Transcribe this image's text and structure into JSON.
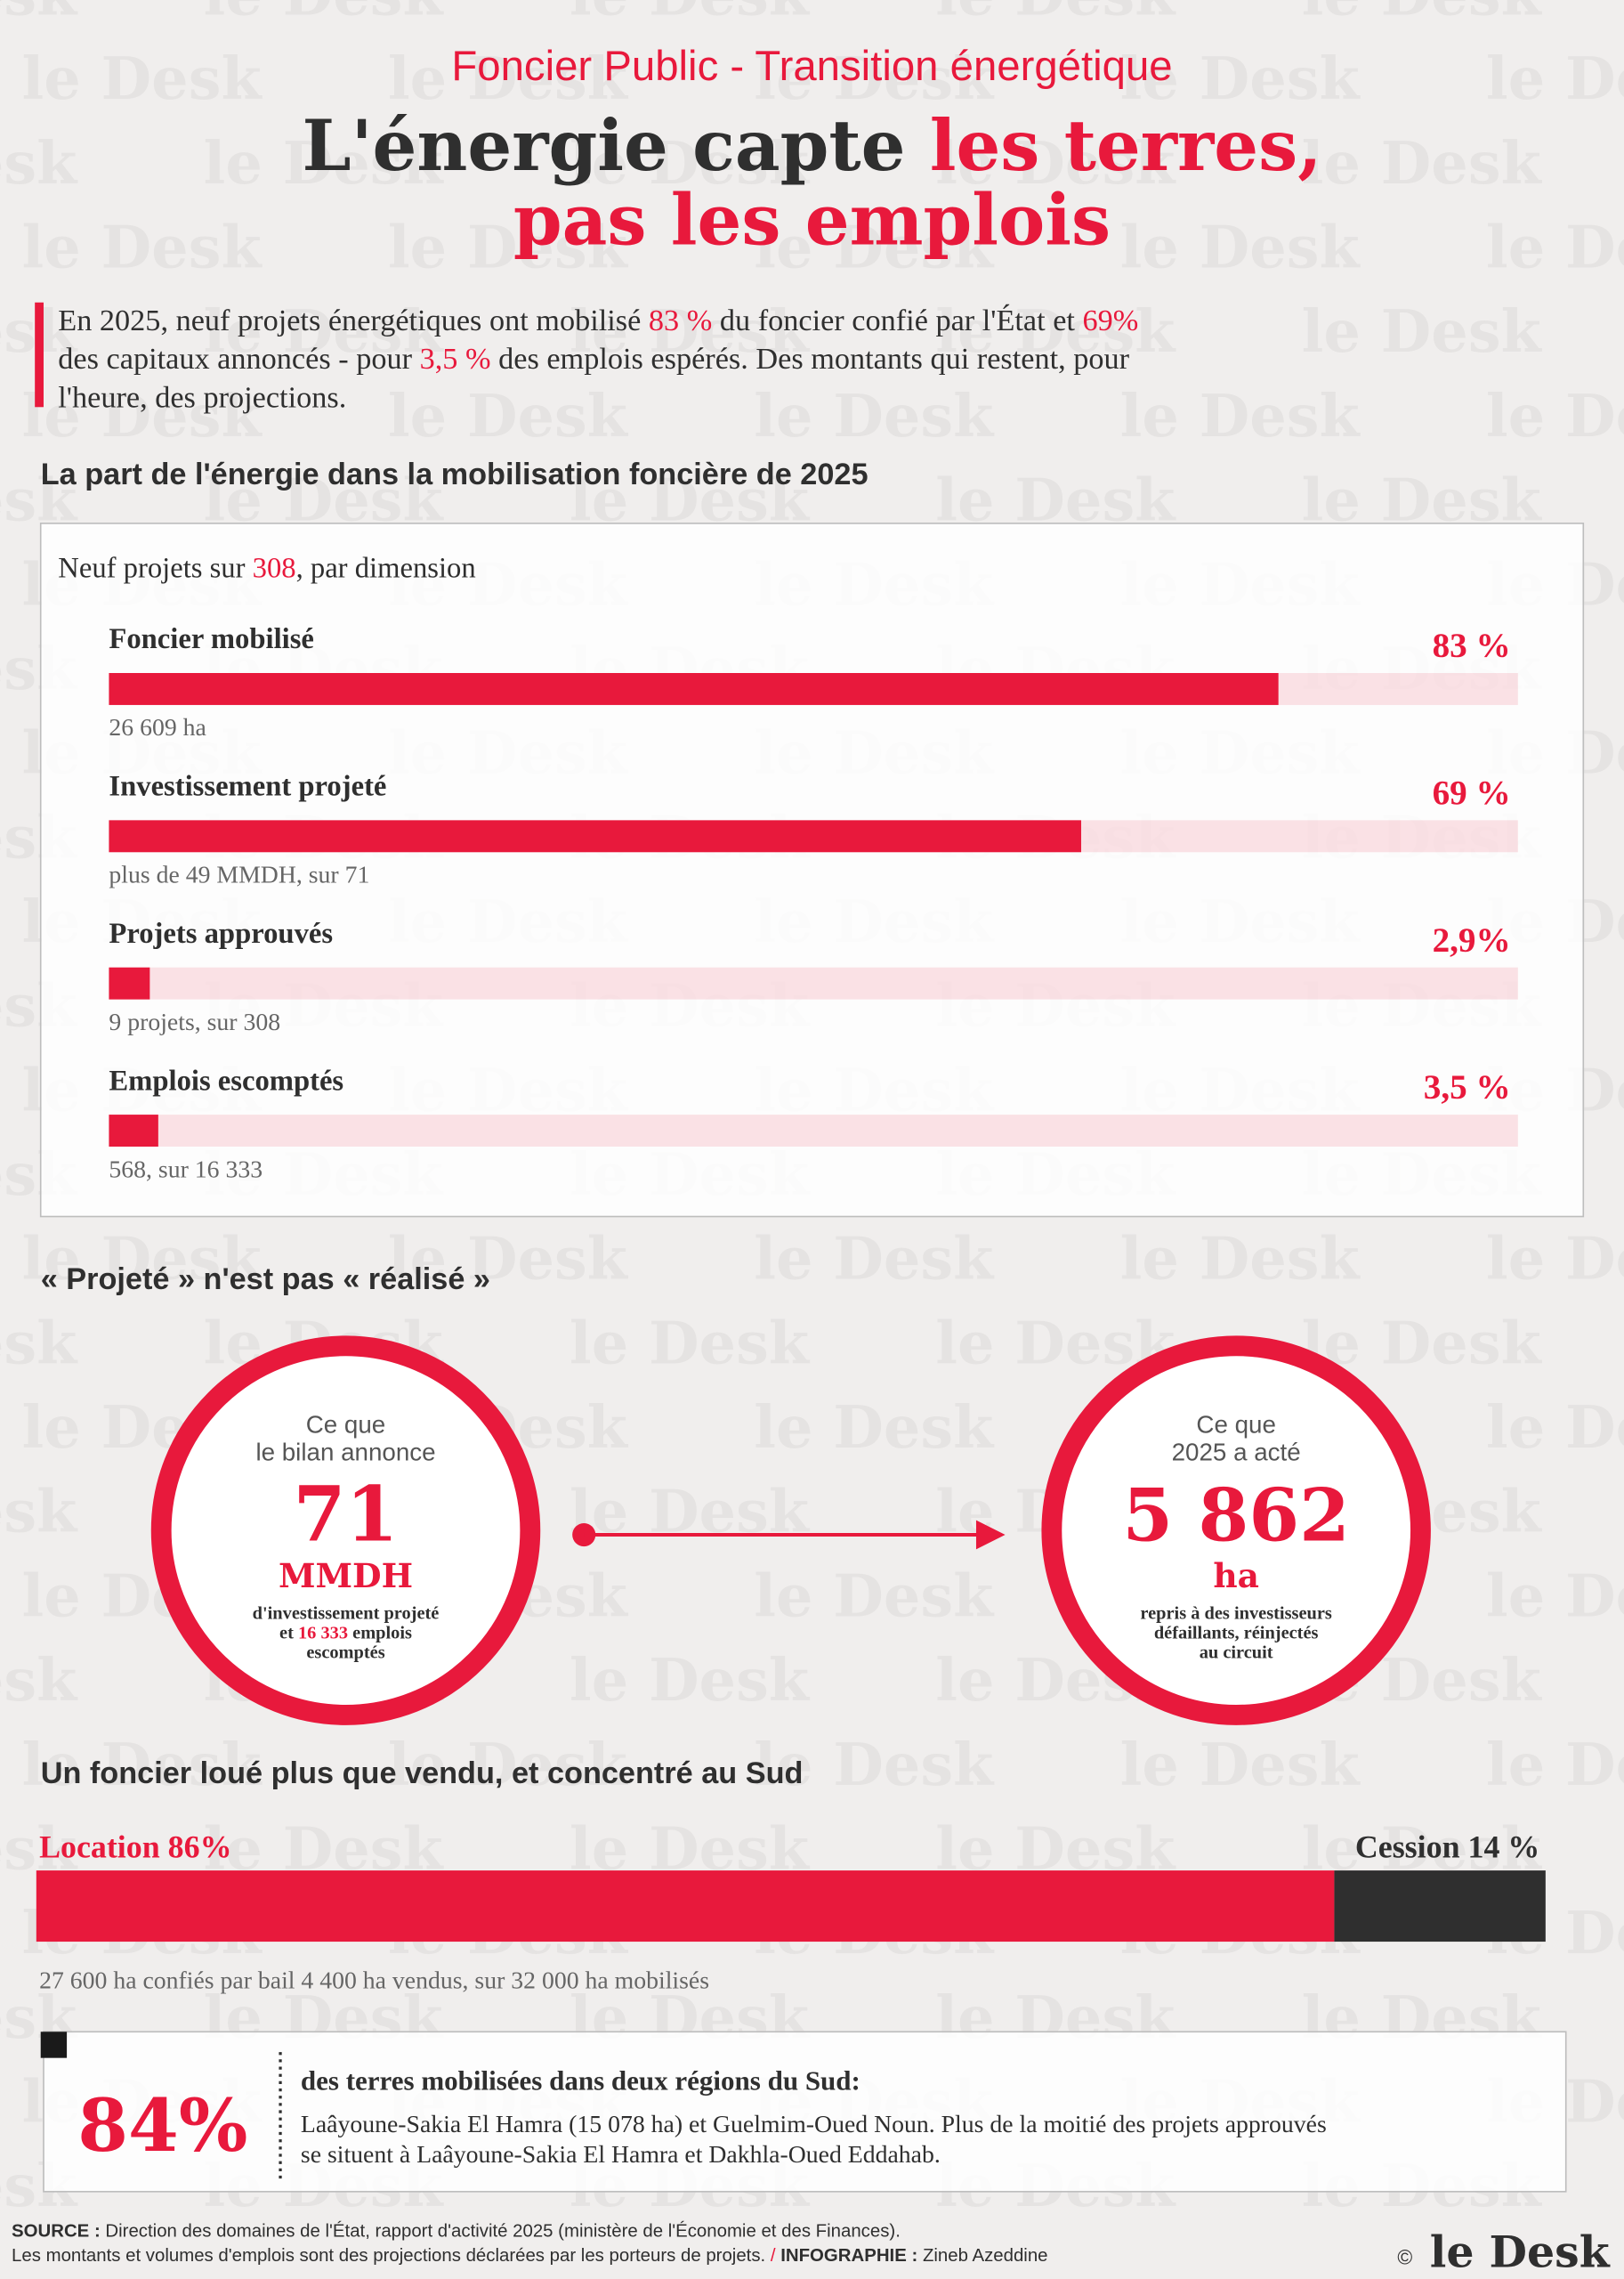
{
  "watermark": "le Desk",
  "header": {
    "kicker": "Foncier Public - Transition énergétique",
    "title_dark": "L'énergie capte ",
    "title_red_1": "les terres,",
    "title_red_2": "pas les emplois"
  },
  "intro": [
    [
      {
        "text": "En 2025, neuf projets énergétiques ont mobilisé "
      },
      {
        "text": "83 %",
        "em": true
      },
      {
        "text": " du foncier confié par l'État et "
      },
      {
        "text": "69%",
        "em": true
      }
    ],
    [
      {
        "text": "des capitaux annoncés - pour "
      },
      {
        "text": "3,5 %",
        "em": true
      },
      {
        "text": " des emplois espérés. Des montants qui restent, pour"
      }
    ],
    [
      {
        "text": "l'heure, des projections."
      }
    ]
  ],
  "chart_data": {
    "type": "bar",
    "title": "La part de l'énergie dans la mobilisation foncière de 2025",
    "subtitle": [
      {
        "text": "Neuf projets sur "
      },
      {
        "text": "308",
        "em": true
      },
      {
        "text": ", par dimension"
      }
    ],
    "categories": [
      "Foncier mobilisé",
      "Investissement projeté",
      "Projets approuvés",
      "Emplois escomptés"
    ],
    "values": [
      83,
      69,
      2.9,
      3.5
    ],
    "value_labels": [
      "83 %",
      "69 %",
      "2,9%",
      "3,5 %"
    ],
    "notes": [
      "26 609 ha",
      "plus de 49 MMDH, sur 71",
      "9 projets, sur 308",
      "568, sur 16 333"
    ],
    "xlim": [
      0,
      100
    ],
    "color": "#e8193c"
  },
  "circles": {
    "title": "« Projeté » n'est pas « réalisé »",
    "left": {
      "label": [
        "Ce que",
        "le bilan annonce"
      ],
      "value": "71",
      "unit": "MMDH",
      "caption": [
        [
          {
            "text": "d'investissement projeté"
          }
        ],
        [
          {
            "text": "et "
          },
          {
            "text": "16 333",
            "em": true
          },
          {
            "text": " emplois"
          }
        ],
        [
          {
            "text": "escomptés"
          }
        ]
      ]
    },
    "right": {
      "label": [
        "Ce que",
        "2025 a acté"
      ],
      "value": "5 862",
      "unit": "ha",
      "caption": [
        [
          {
            "text": "repris à des investisseurs"
          }
        ],
        [
          {
            "text": "défaillants, réinjectés"
          }
        ],
        [
          {
            "text": "au circuit"
          }
        ]
      ]
    }
  },
  "split": {
    "title": "Un foncier loué plus que vendu, et concentré au Sud",
    "segments": [
      {
        "label": "Location 86%",
        "value": 86,
        "color": "#e8193c"
      },
      {
        "label": "Cession 14 %",
        "value": 14,
        "color": "#2f2f2f"
      }
    ],
    "note": "27 600 ha confiés par bail 4 400 ha vendus, sur 32 000 ha mobilisés"
  },
  "callout": {
    "big": "84%",
    "heading": "des terres mobilisées dans deux régions du Sud:",
    "body": [
      "Laâyoune-Sakia El Hamra (15 078 ha) et Guelmim-Oued Noun. Plus de la moitié des projets approuvés",
      "se situent à Laâyoune-Sakia El Hamra et Dakhla-Oued Eddahab."
    ]
  },
  "footer": {
    "source_label": "SOURCE :",
    "source_text": " Direction des domaines de l'État, rapport d'activité 2025 (ministère de l'Économie et des Finances).",
    "line2": "Les montants et volumes d'emplois sont des projections déclarées par les porteurs de projets. ",
    "separator": "/",
    "credit_label": " INFOGRAPHIE :",
    "credit_name": " Zineb Azeddine",
    "copyright": "©",
    "logo": "le Desk"
  }
}
